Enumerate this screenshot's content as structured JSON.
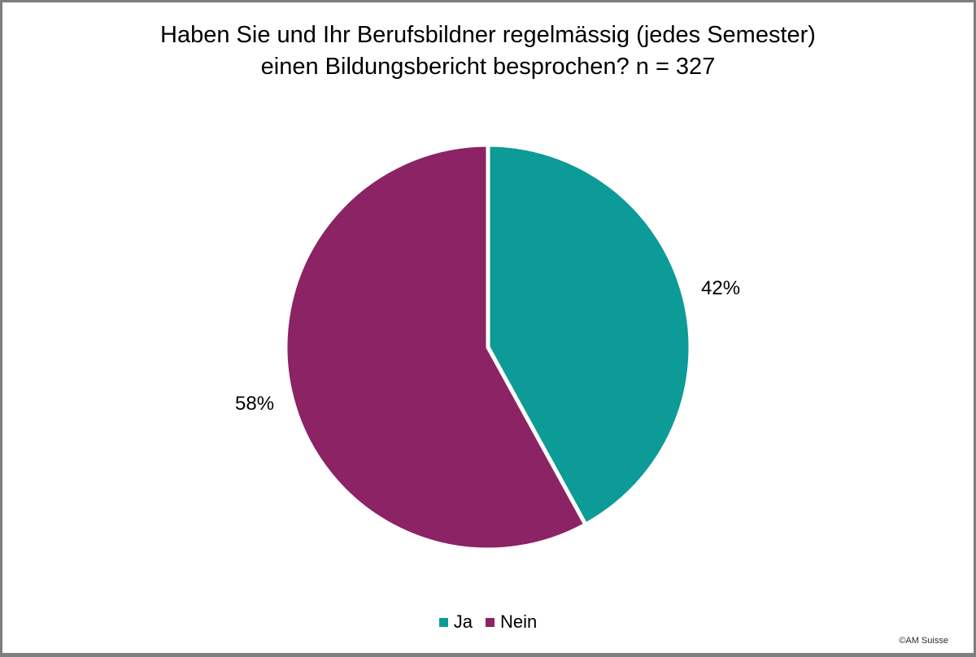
{
  "chart_data": {
    "type": "pie",
    "title": "Haben Sie und Ihr Berufsbildner regelmässig (jedes Semester) einen Bildungsbericht besprochen? n = 327",
    "labels": [
      "Ja",
      "Nein"
    ],
    "values": [
      42,
      58
    ],
    "value_labels": [
      "42%",
      "58%"
    ],
    "colors": [
      "#0d9b97",
      "#8b2365"
    ],
    "slice_border_color": "#ffffff",
    "start_angle": "12-o-clock",
    "direction": "clockwise",
    "legend_position": "bottom",
    "n": 327
  },
  "footer": {
    "copyright": "©AM Suisse"
  }
}
